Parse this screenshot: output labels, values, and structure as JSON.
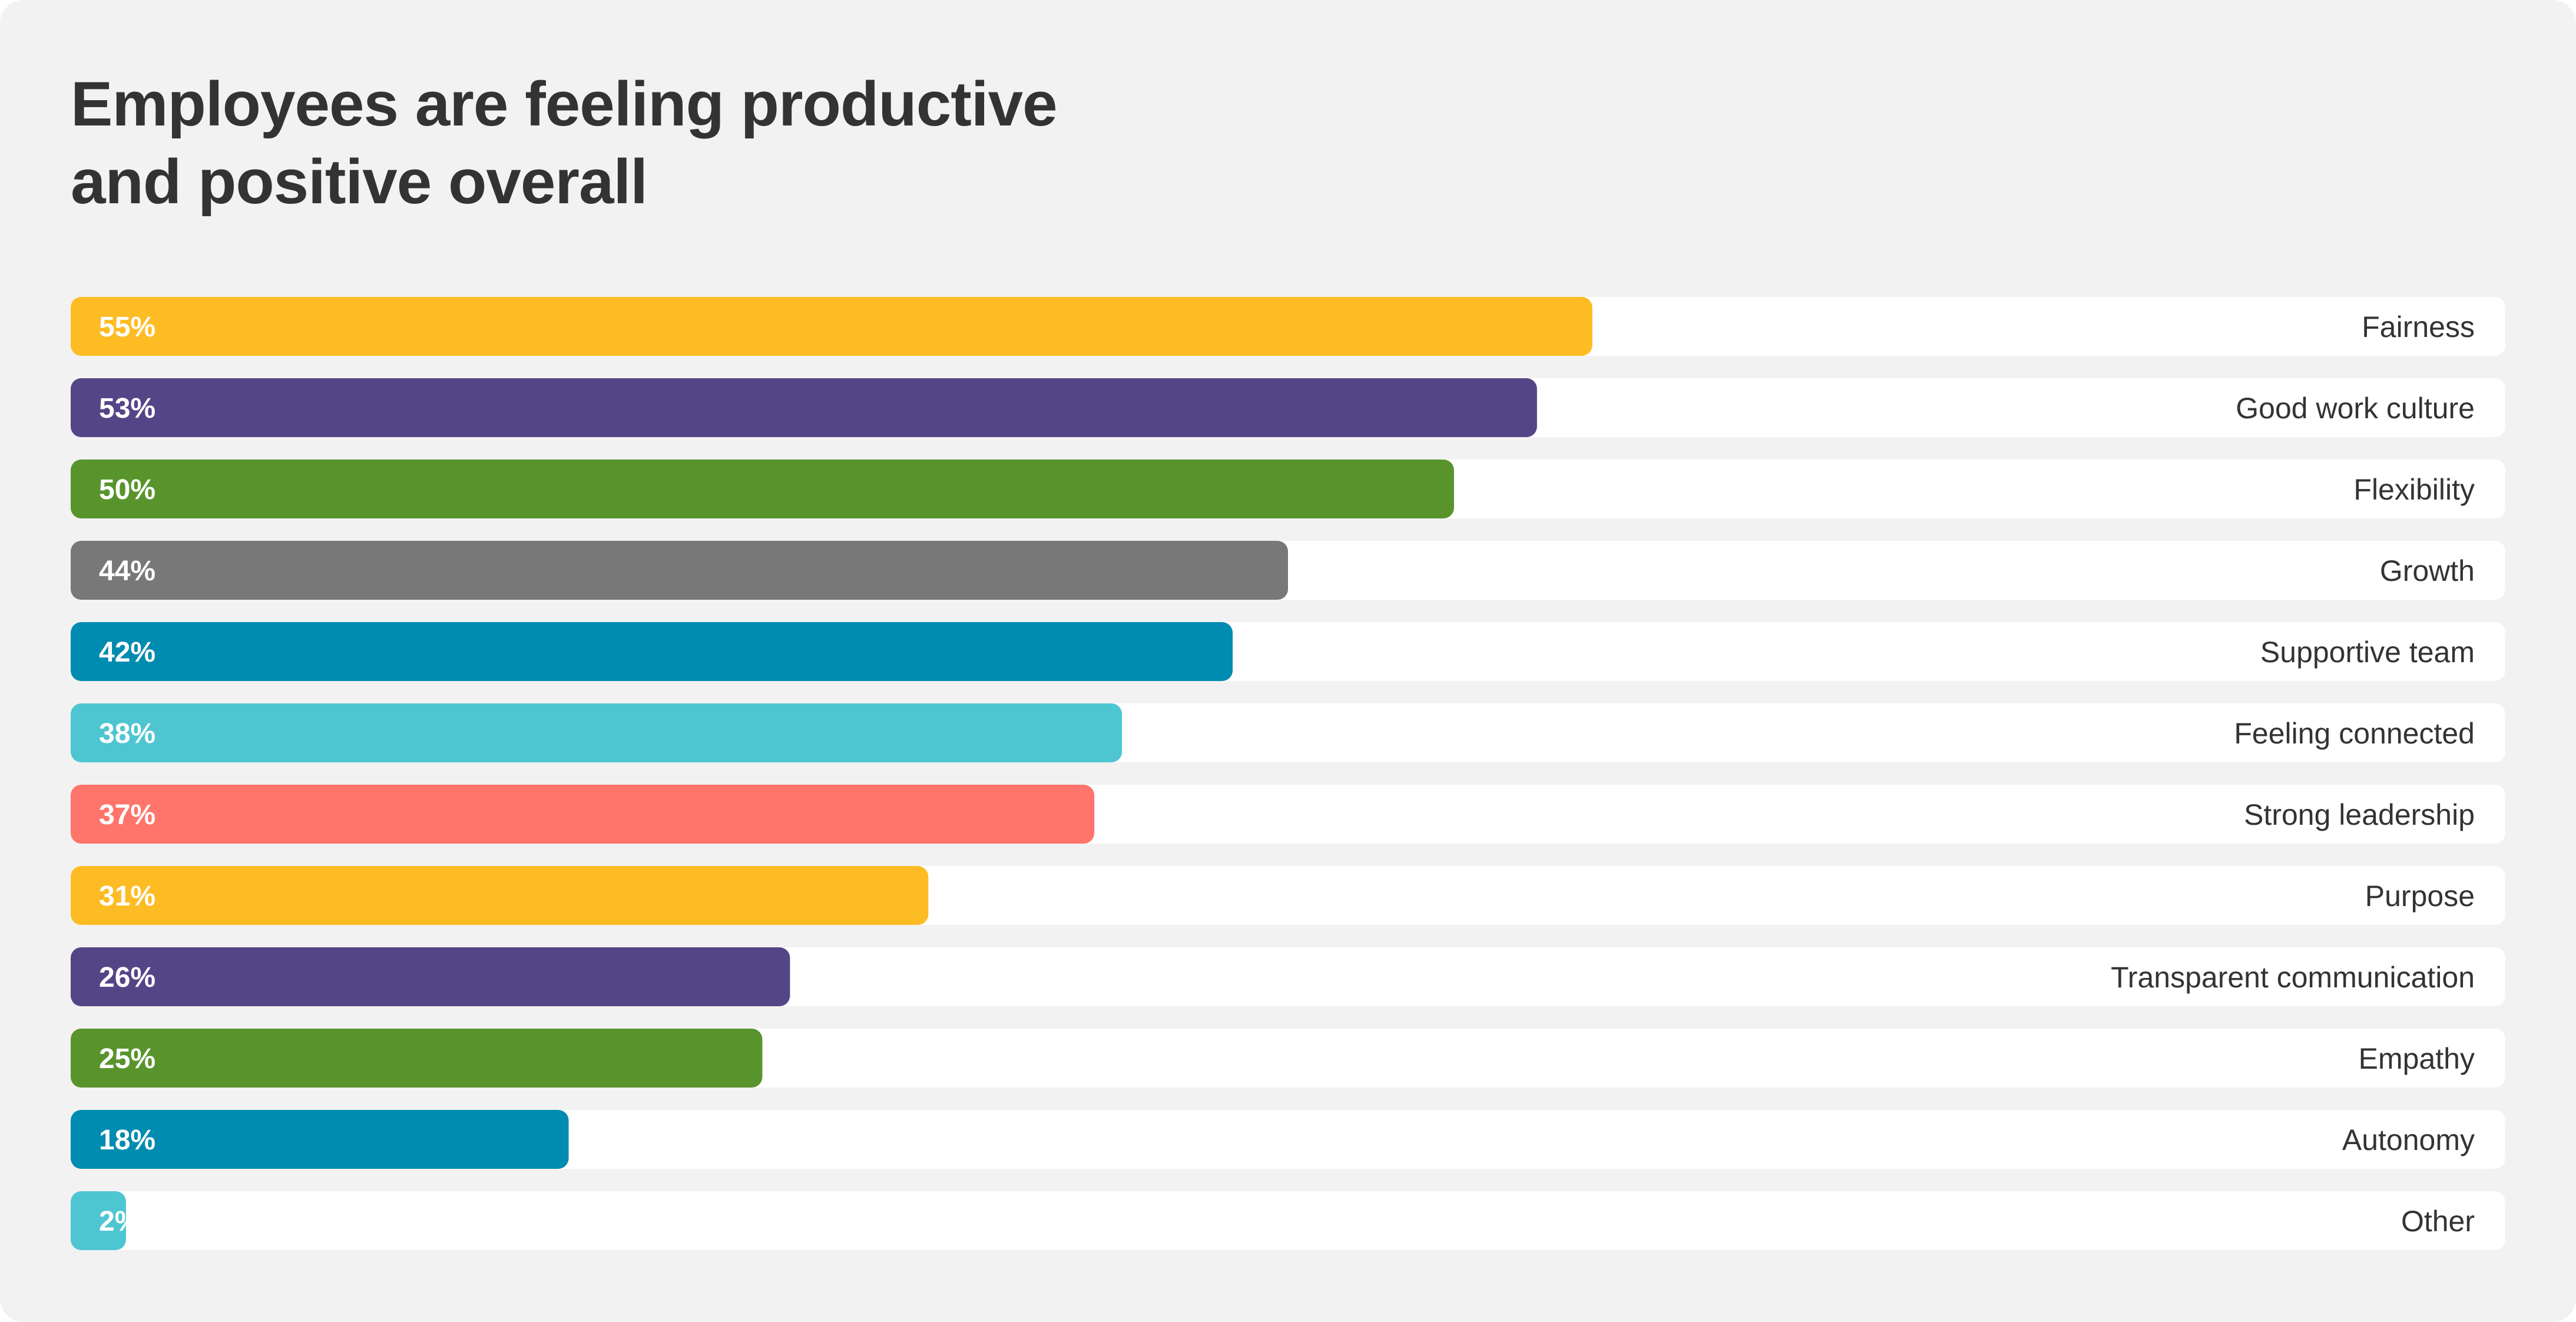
{
  "header": {
    "title_line1": "Employees are feeling productive",
    "title_line2": "and positive overall"
  },
  "chart_data": {
    "type": "bar",
    "orientation": "horizontal",
    "title": "Employees are feeling productive and positive overall",
    "xlim": [
      0,
      88
    ],
    "grid": false,
    "legend": "none",
    "categories": [
      "Fairness",
      "Good work culture",
      "Flexibility",
      "Growth",
      "Supportive team",
      "Feeling connected",
      "Strong leadership",
      "Purpose",
      "Transparent communication",
      "Empathy",
      "Autonomy",
      "Other"
    ],
    "values": [
      55,
      53,
      50,
      44,
      42,
      38,
      37,
      31,
      26,
      25,
      18,
      2
    ],
    "value_labels": [
      "55%",
      "53%",
      "50%",
      "44%",
      "42%",
      "38%",
      "37%",
      "31%",
      "26%",
      "25%",
      "18%",
      "2%"
    ],
    "colors": [
      "#FEBC24",
      "#534586",
      "#58942B",
      "#787878",
      "#008BB0",
      "#4EC6D1",
      "#FF746B",
      "#FEBC24",
      "#534586",
      "#58942B",
      "#008BB0",
      "#4EC6D1"
    ]
  }
}
